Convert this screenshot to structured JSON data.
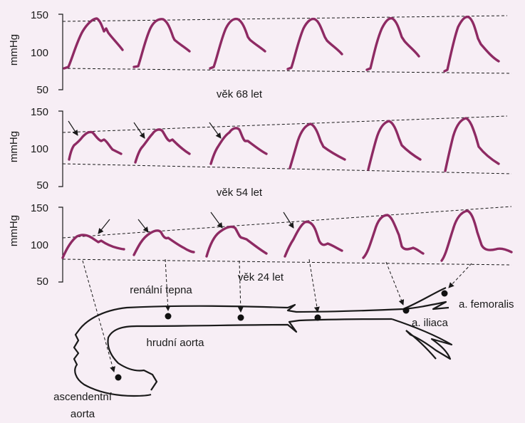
{
  "colors": {
    "background": "#f7eef5",
    "waveform": "#8e2a63",
    "ink": "#1a1a1a"
  },
  "y_axis_label": "mmHg",
  "y_ticks": [
    "150",
    "100",
    "50"
  ],
  "panels": [
    {
      "caption": "věk 68 let"
    },
    {
      "caption": "věk 54 let"
    },
    {
      "caption": "věk 24  let"
    }
  ],
  "labels": {
    "renal": "renální tepna",
    "thoracic": "hrudní aorta",
    "ascending_1": "ascendentní",
    "ascending_2": "aorta",
    "iliac": "a. iliaca",
    "femoral": "a. femoralis"
  }
}
